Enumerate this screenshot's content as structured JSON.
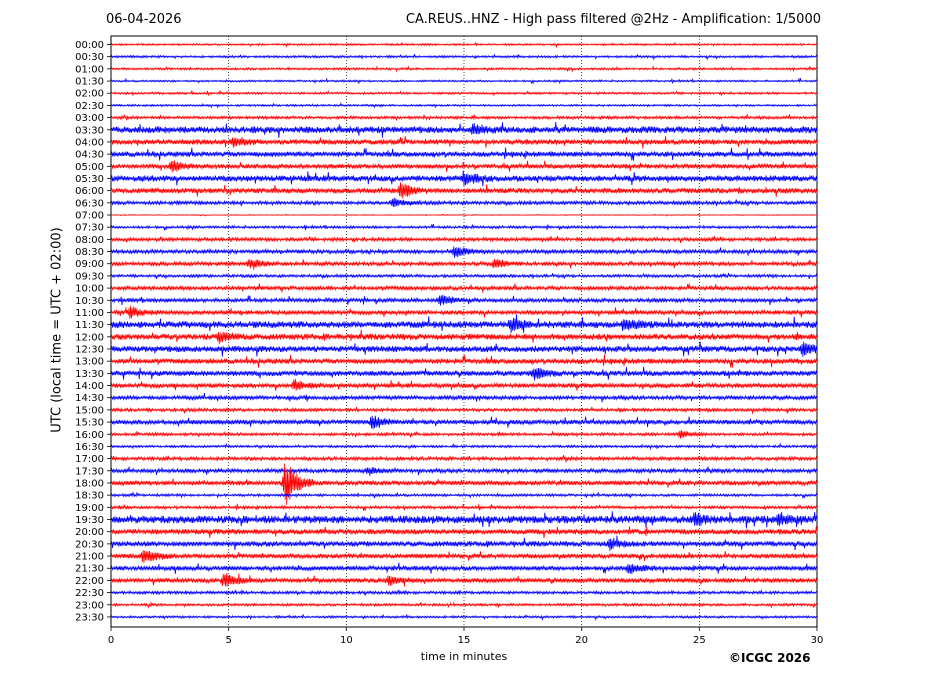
{
  "header": {
    "date": "06-04-2026",
    "title": "CA.REUS..HNZ - High pass filtered @2Hz - Amplification: 1/5000"
  },
  "footer": {
    "copyright": "©ICGC 2026"
  },
  "colors": {
    "trace_a": "#ff0000",
    "trace_b": "#0000ff",
    "grid": "#000000"
  },
  "chart_data": {
    "type": "line",
    "title": "CA.REUS..HNZ - High pass filtered @2Hz - Amplification: 1/5000",
    "xlabel": "time in minutes",
    "ylabel": "UTC (local time = UTC + 02:00)",
    "xlim": [
      0,
      30
    ],
    "xticks": [
      "0",
      "5",
      "10",
      "15",
      "20",
      "25",
      "30"
    ],
    "vertical_grid_minutes": [
      5,
      10,
      15,
      20,
      25
    ],
    "row_labels": [
      "00:00",
      "00:30",
      "01:00",
      "01:30",
      "02:00",
      "02:30",
      "03:00",
      "03:30",
      "04:00",
      "04:30",
      "05:00",
      "05:30",
      "06:00",
      "06:30",
      "07:00",
      "07:30",
      "08:00",
      "08:30",
      "09:00",
      "09:30",
      "10:00",
      "10:30",
      "11:00",
      "11:30",
      "12:00",
      "12:30",
      "13:00",
      "13:30",
      "14:00",
      "14:30",
      "15:00",
      "15:30",
      "16:00",
      "16:30",
      "17:00",
      "17:30",
      "18:00",
      "18:30",
      "19:00",
      "19:30",
      "20:00",
      "20:30",
      "21:00",
      "21:30",
      "22:00",
      "22:30",
      "23:00",
      "23:30"
    ],
    "row_colors": [
      "red",
      "blue"
    ],
    "noise_level": [
      0.12,
      0.14,
      0.14,
      0.12,
      0.14,
      0.12,
      0.18,
      0.45,
      0.35,
      0.35,
      0.3,
      0.4,
      0.35,
      0.22,
      0.05,
      0.16,
      0.22,
      0.25,
      0.25,
      0.18,
      0.25,
      0.25,
      0.28,
      0.45,
      0.4,
      0.4,
      0.35,
      0.35,
      0.3,
      0.25,
      0.2,
      0.3,
      0.18,
      0.15,
      0.22,
      0.25,
      0.3,
      0.16,
      0.18,
      0.5,
      0.35,
      0.35,
      0.3,
      0.3,
      0.3,
      0.18,
      0.16,
      0.14
    ],
    "events": [
      {
        "row": "03:30",
        "minute": 15.4,
        "amplitude": 0.6
      },
      {
        "row": "04:00",
        "minute": 5.2,
        "amplitude": 0.7
      },
      {
        "row": "05:00",
        "minute": 2.6,
        "amplitude": 0.8
      },
      {
        "row": "05:30",
        "minute": 15.0,
        "amplitude": 0.8
      },
      {
        "row": "06:00",
        "minute": 12.3,
        "amplitude": 1.0
      },
      {
        "row": "06:30",
        "minute": 12.0,
        "amplitude": 0.6
      },
      {
        "row": "08:30",
        "minute": 14.6,
        "amplitude": 0.8
      },
      {
        "row": "09:00",
        "minute": 5.9,
        "amplitude": 0.9
      },
      {
        "row": "09:00",
        "minute": 16.3,
        "amplitude": 0.7
      },
      {
        "row": "10:30",
        "minute": 14.0,
        "amplitude": 0.9
      },
      {
        "row": "11:00",
        "minute": 0.8,
        "amplitude": 0.8
      },
      {
        "row": "11:30",
        "minute": 17.0,
        "amplitude": 0.8
      },
      {
        "row": "11:30",
        "minute": 21.8,
        "amplitude": 0.9
      },
      {
        "row": "12:00",
        "minute": 4.6,
        "amplitude": 0.7
      },
      {
        "row": "12:30",
        "minute": 29.4,
        "amplitude": 0.9
      },
      {
        "row": "13:30",
        "minute": 18.0,
        "amplitude": 0.8
      },
      {
        "row": "14:00",
        "minute": 7.8,
        "amplitude": 0.8
      },
      {
        "row": "15:30",
        "minute": 11.1,
        "amplitude": 1.0
      },
      {
        "row": "16:00",
        "minute": 24.2,
        "amplitude": 0.5
      },
      {
        "row": "17:30",
        "minute": 10.9,
        "amplitude": 0.6
      },
      {
        "row": "18:00",
        "minute": 7.4,
        "amplitude": 3.6
      },
      {
        "row": "19:30",
        "minute": 24.8,
        "amplitude": 0.8
      },
      {
        "row": "19:30",
        "minute": 28.4,
        "amplitude": 0.7
      },
      {
        "row": "20:30",
        "minute": 21.2,
        "amplitude": 0.7
      },
      {
        "row": "21:00",
        "minute": 1.4,
        "amplitude": 1.2
      },
      {
        "row": "21:30",
        "minute": 22.0,
        "amplitude": 0.8
      },
      {
        "row": "22:00",
        "minute": 4.8,
        "amplitude": 1.0
      },
      {
        "row": "22:00",
        "minute": 11.8,
        "amplitude": 0.7
      }
    ]
  }
}
